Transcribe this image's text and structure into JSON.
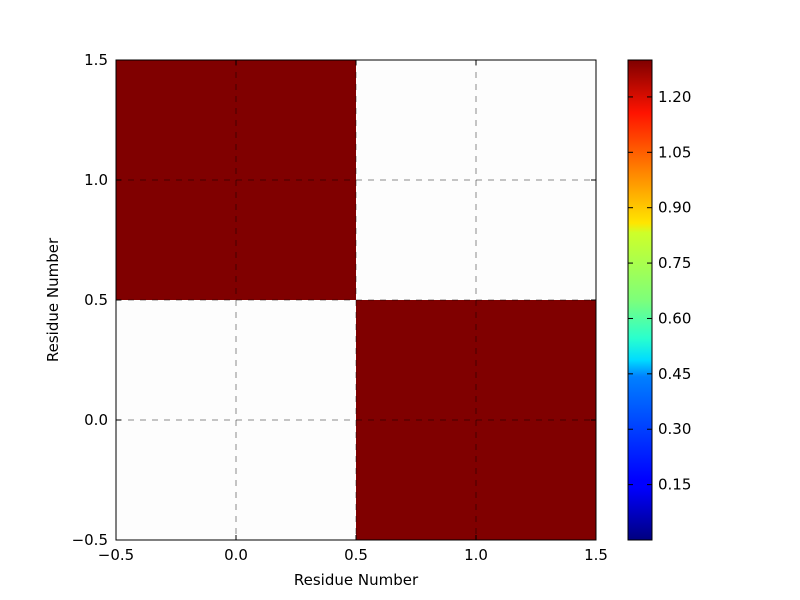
{
  "chart_data": {
    "type": "heatmap",
    "x": [
      0,
      1
    ],
    "y": [
      0,
      1
    ],
    "values": [
      [
        0,
        1.3
      ],
      [
        1.3,
        0
      ]
    ],
    "xlabel": "Residue Number",
    "ylabel": "Residue Number",
    "xlim": [
      -0.5,
      1.5
    ],
    "ylim": [
      -0.5,
      1.5
    ],
    "xticks": [
      -0.5,
      0.0,
      0.5,
      1.0,
      1.5
    ],
    "yticks": [
      -0.5,
      0.0,
      0.5,
      1.0,
      1.5
    ],
    "xtick_labels": [
      "−0.5",
      "0.0",
      "0.5",
      "1.0",
      "1.5"
    ],
    "ytick_labels": [
      "−0.5",
      "0.0",
      "0.5",
      "1.0",
      "1.5"
    ],
    "grid": true,
    "colormap": "jet",
    "zero_color": "#fdfdfd",
    "colorbar": {
      "range": [
        0.0,
        1.3
      ],
      "ticks": [
        0.15,
        0.3,
        0.45,
        0.6,
        0.75,
        0.9,
        1.05,
        1.2
      ],
      "tick_labels": [
        "0.15",
        "0.30",
        "0.45",
        "0.60",
        "0.75",
        "0.90",
        "1.05",
        "1.20"
      ],
      "placement": "right"
    }
  }
}
